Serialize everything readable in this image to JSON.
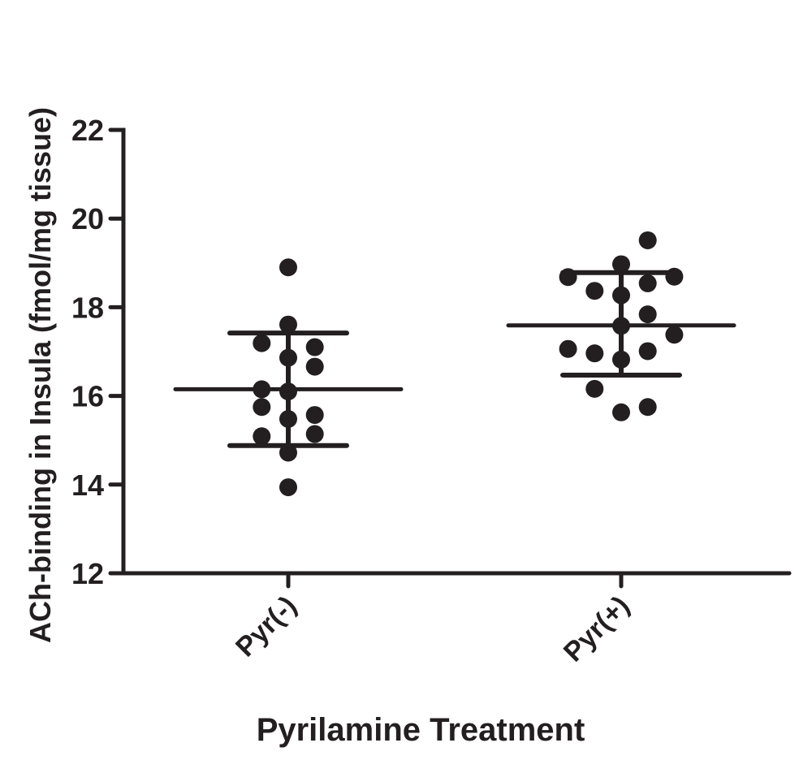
{
  "chart_data": {
    "type": "scatter",
    "title": "",
    "xlabel": "Pyrilamine Treatment",
    "ylabel": "ACh-binding in Insula (fmol/mg tissue)",
    "ylim": [
      12,
      22
    ],
    "yticks": [
      "12",
      "14",
      "16",
      "18",
      "20",
      "22"
    ],
    "categories": [
      "Pyr(-)",
      "Pyr(+)"
    ],
    "grid": false,
    "color": "#231f20",
    "groups": [
      {
        "category": "Pyr(-)",
        "values": [
          18.9,
          17.61,
          17.19,
          17.1,
          16.86,
          16.66,
          16.15,
          16.1,
          15.75,
          15.48,
          15.57,
          15.09,
          15.14,
          14.72,
          13.94
        ],
        "mean": 16.15,
        "sd_upper": 17.42,
        "sd_lower": 14.88
      },
      {
        "category": "Pyr(+)",
        "values": [
          19.51,
          18.97,
          18.68,
          18.69,
          18.54,
          18.37,
          18.27,
          17.84,
          17.58,
          17.38,
          17.06,
          16.96,
          17.01,
          16.82,
          16.16,
          15.75,
          15.63
        ],
        "mean": 17.59,
        "sd_upper": 18.78,
        "sd_lower": 16.47
      }
    ]
  }
}
